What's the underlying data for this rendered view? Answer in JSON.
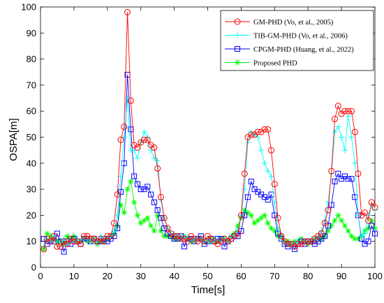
{
  "chart_data": {
    "type": "line",
    "xlabel": "Time[s]",
    "ylabel": "OSPA[m]",
    "xlim": [
      0,
      100
    ],
    "ylim": [
      0,
      100
    ],
    "xticks": [
      "0",
      "10",
      "20",
      "30",
      "40",
      "50",
      "60",
      "70",
      "80",
      "90",
      "100"
    ],
    "yticks": [
      "0",
      "10",
      "20",
      "30",
      "40",
      "50",
      "60",
      "70",
      "80",
      "90",
      "100"
    ],
    "grid": false,
    "legend_position": "top-right",
    "x": [
      1,
      2,
      3,
      4,
      5,
      6,
      7,
      8,
      9,
      10,
      11,
      12,
      13,
      14,
      15,
      16,
      17,
      18,
      19,
      20,
      21,
      22,
      23,
      24,
      25,
      26,
      27,
      28,
      29,
      30,
      31,
      32,
      33,
      34,
      35,
      36,
      37,
      38,
      39,
      40,
      41,
      42,
      43,
      44,
      45,
      46,
      47,
      48,
      49,
      50,
      51,
      52,
      53,
      54,
      55,
      56,
      57,
      58,
      59,
      60,
      61,
      62,
      63,
      64,
      65,
      66,
      67,
      68,
      69,
      70,
      71,
      72,
      73,
      74,
      75,
      76,
      77,
      78,
      79,
      80,
      81,
      82,
      83,
      84,
      85,
      86,
      87,
      88,
      89,
      90,
      91,
      92,
      93,
      94,
      95,
      96,
      97,
      98,
      99,
      100
    ],
    "series": [
      {
        "name": "GM-PHD (Vo, et al., 2005)",
        "color": "#ff0000",
        "marker": "circle",
        "values": [
          7,
          11,
          10,
          12,
          8,
          8,
          10,
          9,
          11,
          10,
          10,
          9,
          12,
          12,
          11,
          11,
          10,
          11,
          10,
          12,
          12,
          17,
          28,
          49,
          54,
          98,
          64,
          47,
          46,
          48,
          49,
          49,
          47,
          46,
          38,
          27,
          19,
          15,
          13,
          12,
          12,
          11,
          11,
          10,
          12,
          11,
          10,
          11,
          10,
          12,
          11,
          10,
          9,
          10,
          11,
          10,
          11,
          12,
          13,
          20,
          36,
          50,
          51,
          51,
          52,
          52,
          53,
          53,
          45,
          32,
          19,
          12,
          10,
          9,
          9,
          8,
          9,
          9,
          10,
          10,
          10,
          11,
          12,
          13,
          17,
          22,
          37,
          57,
          62,
          59,
          60,
          60,
          60,
          52,
          36,
          20,
          21,
          18,
          25,
          23
        ]
      },
      {
        "name": "TIB-GM-PHD (Vo, et al., 2006)",
        "color": "#00ffff",
        "marker": "plus",
        "values": [
          8,
          11,
          10,
          12,
          9,
          9,
          11,
          9,
          10,
          10,
          11,
          10,
          11,
          11,
          10,
          11,
          10,
          12,
          11,
          11,
          12,
          14,
          20,
          35,
          50,
          65,
          45,
          45,
          42,
          48,
          52,
          50,
          45,
          42,
          41,
          26,
          19,
          15,
          13,
          13,
          12,
          12,
          12,
          11,
          11,
          10,
          11,
          11,
          10,
          11,
          10,
          11,
          10,
          10,
          11,
          10,
          12,
          12,
          14,
          20,
          30,
          48,
          52,
          51,
          50,
          45,
          40,
          37,
          35,
          25,
          15,
          11,
          9,
          9,
          8,
          9,
          10,
          10,
          10,
          10,
          11,
          11,
          12,
          14,
          18,
          25,
          36,
          52,
          54,
          50,
          45,
          58,
          50,
          40,
          20,
          12,
          13,
          20,
          24,
          22
        ]
      },
      {
        "name": "CPGM-PHD (Huang, et al., 2022)",
        "color": "#0000ff",
        "marker": "square",
        "values": [
          11,
          9,
          10,
          10,
          13,
          10,
          6,
          10,
          9,
          11,
          10,
          9,
          11,
          11,
          10,
          11,
          10,
          10,
          11,
          10,
          11,
          12,
          15,
          29,
          40,
          74,
          53,
          35,
          32,
          30,
          30,
          31,
          28,
          25,
          22,
          19,
          15,
          13,
          12,
          11,
          11,
          12,
          8,
          11,
          11,
          10,
          11,
          12,
          9,
          10,
          11,
          10,
          11,
          11,
          8,
          10,
          11,
          12,
          12,
          14,
          20,
          27,
          33,
          30,
          29,
          28,
          27,
          26,
          28,
          20,
          13,
          11,
          9,
          8,
          9,
          7,
          9,
          10,
          9,
          10,
          10,
          9,
          10,
          11,
          12,
          16,
          24,
          33,
          36,
          34,
          35,
          34,
          34,
          27,
          20,
          11,
          9,
          10,
          16,
          13
        ]
      },
      {
        "name": "Proposed PHD",
        "color": "#00ff00",
        "marker": "asterisk",
        "values": [
          7,
          13,
          12,
          11,
          10,
          10,
          9,
          12,
          11,
          12,
          10,
          10,
          11,
          10,
          10,
          11,
          9,
          10,
          10,
          11,
          12,
          13,
          16,
          24,
          21,
          30,
          33,
          25,
          20,
          17,
          18,
          19,
          16,
          14,
          20,
          14,
          12,
          12,
          12,
          11,
          11,
          11,
          12,
          11,
          10,
          10,
          11,
          11,
          10,
          10,
          11,
          10,
          10,
          11,
          11,
          10,
          12,
          13,
          16,
          19,
          22,
          21,
          20,
          17,
          18,
          19,
          20,
          17,
          15,
          14,
          12,
          12,
          10,
          10,
          9,
          10,
          10,
          11,
          10,
          9,
          10,
          11,
          11,
          11,
          12,
          14,
          16,
          18,
          20,
          18,
          16,
          14,
          12,
          11,
          11,
          12,
          14,
          15,
          18,
          15
        ]
      }
    ]
  }
}
